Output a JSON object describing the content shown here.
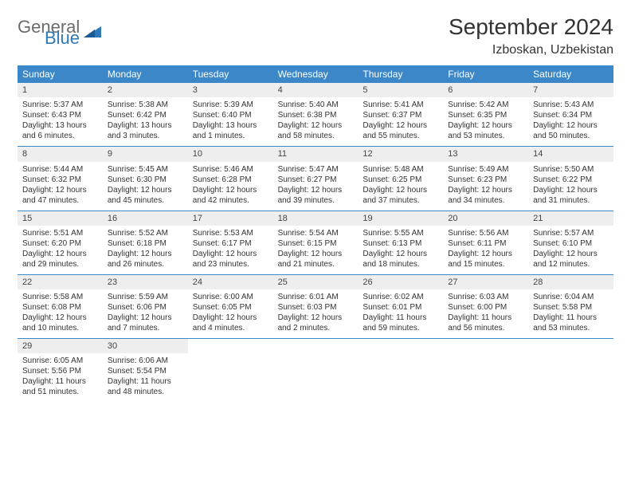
{
  "logo": {
    "word1": "General",
    "word2": "Blue"
  },
  "title": "September 2024",
  "location": "Izboskan, Uzbekistan",
  "colors": {
    "header_bg": "#3b87c8",
    "header_fg": "#ffffff",
    "daynum_bg": "#eeeeee",
    "row_border": "#3b87c8",
    "logo_gray": "#6b6b6b",
    "logo_blue": "#2e78b7"
  },
  "day_names": [
    "Sunday",
    "Monday",
    "Tuesday",
    "Wednesday",
    "Thursday",
    "Friday",
    "Saturday"
  ],
  "weeks": [
    [
      {
        "n": "1",
        "sunrise": "5:37 AM",
        "sunset": "6:43 PM",
        "daylight": "13 hours and 6 minutes."
      },
      {
        "n": "2",
        "sunrise": "5:38 AM",
        "sunset": "6:42 PM",
        "daylight": "13 hours and 3 minutes."
      },
      {
        "n": "3",
        "sunrise": "5:39 AM",
        "sunset": "6:40 PM",
        "daylight": "13 hours and 1 minutes."
      },
      {
        "n": "4",
        "sunrise": "5:40 AM",
        "sunset": "6:38 PM",
        "daylight": "12 hours and 58 minutes."
      },
      {
        "n": "5",
        "sunrise": "5:41 AM",
        "sunset": "6:37 PM",
        "daylight": "12 hours and 55 minutes."
      },
      {
        "n": "6",
        "sunrise": "5:42 AM",
        "sunset": "6:35 PM",
        "daylight": "12 hours and 53 minutes."
      },
      {
        "n": "7",
        "sunrise": "5:43 AM",
        "sunset": "6:34 PM",
        "daylight": "12 hours and 50 minutes."
      }
    ],
    [
      {
        "n": "8",
        "sunrise": "5:44 AM",
        "sunset": "6:32 PM",
        "daylight": "12 hours and 47 minutes."
      },
      {
        "n": "9",
        "sunrise": "5:45 AM",
        "sunset": "6:30 PM",
        "daylight": "12 hours and 45 minutes."
      },
      {
        "n": "10",
        "sunrise": "5:46 AM",
        "sunset": "6:28 PM",
        "daylight": "12 hours and 42 minutes."
      },
      {
        "n": "11",
        "sunrise": "5:47 AM",
        "sunset": "6:27 PM",
        "daylight": "12 hours and 39 minutes."
      },
      {
        "n": "12",
        "sunrise": "5:48 AM",
        "sunset": "6:25 PM",
        "daylight": "12 hours and 37 minutes."
      },
      {
        "n": "13",
        "sunrise": "5:49 AM",
        "sunset": "6:23 PM",
        "daylight": "12 hours and 34 minutes."
      },
      {
        "n": "14",
        "sunrise": "5:50 AM",
        "sunset": "6:22 PM",
        "daylight": "12 hours and 31 minutes."
      }
    ],
    [
      {
        "n": "15",
        "sunrise": "5:51 AM",
        "sunset": "6:20 PM",
        "daylight": "12 hours and 29 minutes."
      },
      {
        "n": "16",
        "sunrise": "5:52 AM",
        "sunset": "6:18 PM",
        "daylight": "12 hours and 26 minutes."
      },
      {
        "n": "17",
        "sunrise": "5:53 AM",
        "sunset": "6:17 PM",
        "daylight": "12 hours and 23 minutes."
      },
      {
        "n": "18",
        "sunrise": "5:54 AM",
        "sunset": "6:15 PM",
        "daylight": "12 hours and 21 minutes."
      },
      {
        "n": "19",
        "sunrise": "5:55 AM",
        "sunset": "6:13 PM",
        "daylight": "12 hours and 18 minutes."
      },
      {
        "n": "20",
        "sunrise": "5:56 AM",
        "sunset": "6:11 PM",
        "daylight": "12 hours and 15 minutes."
      },
      {
        "n": "21",
        "sunrise": "5:57 AM",
        "sunset": "6:10 PM",
        "daylight": "12 hours and 12 minutes."
      }
    ],
    [
      {
        "n": "22",
        "sunrise": "5:58 AM",
        "sunset": "6:08 PM",
        "daylight": "12 hours and 10 minutes."
      },
      {
        "n": "23",
        "sunrise": "5:59 AM",
        "sunset": "6:06 PM",
        "daylight": "12 hours and 7 minutes."
      },
      {
        "n": "24",
        "sunrise": "6:00 AM",
        "sunset": "6:05 PM",
        "daylight": "12 hours and 4 minutes."
      },
      {
        "n": "25",
        "sunrise": "6:01 AM",
        "sunset": "6:03 PM",
        "daylight": "12 hours and 2 minutes."
      },
      {
        "n": "26",
        "sunrise": "6:02 AM",
        "sunset": "6:01 PM",
        "daylight": "11 hours and 59 minutes."
      },
      {
        "n": "27",
        "sunrise": "6:03 AM",
        "sunset": "6:00 PM",
        "daylight": "11 hours and 56 minutes."
      },
      {
        "n": "28",
        "sunrise": "6:04 AM",
        "sunset": "5:58 PM",
        "daylight": "11 hours and 53 minutes."
      }
    ],
    [
      {
        "n": "29",
        "sunrise": "6:05 AM",
        "sunset": "5:56 PM",
        "daylight": "11 hours and 51 minutes."
      },
      {
        "n": "30",
        "sunrise": "6:06 AM",
        "sunset": "5:54 PM",
        "daylight": "11 hours and 48 minutes."
      },
      null,
      null,
      null,
      null,
      null
    ]
  ],
  "labels": {
    "sunrise": "Sunrise: ",
    "sunset": "Sunset: ",
    "daylight": "Daylight: "
  }
}
